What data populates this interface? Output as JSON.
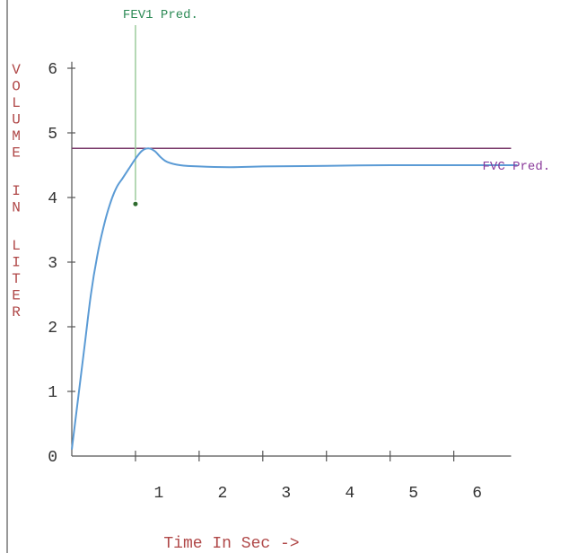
{
  "chart_data": {
    "type": "line",
    "title": "",
    "xlabel": "Time In Sec ->",
    "ylabel": "VOLUME IN LITER",
    "xlim": [
      0,
      7.5
    ],
    "ylim": [
      0,
      6.5
    ],
    "x_ticks": [
      1,
      2,
      3,
      4,
      5,
      6
    ],
    "y_ticks": [
      0,
      1,
      2,
      3,
      4,
      5,
      6
    ],
    "grid": false,
    "series": [
      {
        "color": "#5b9bd5",
        "x": [
          0,
          0.1,
          0.2,
          0.3,
          0.4,
          0.5,
          0.6,
          0.7,
          0.8,
          0.9,
          1.0,
          1.1,
          1.2,
          1.3,
          1.4,
          1.5,
          1.7,
          2.0,
          2.5,
          3.0,
          4.0,
          5.0,
          6.0,
          7.0
        ],
        "y": [
          0.1,
          0.9,
          1.7,
          2.5,
          3.1,
          3.55,
          3.9,
          4.15,
          4.3,
          4.45,
          4.6,
          4.72,
          4.76,
          4.72,
          4.62,
          4.55,
          4.5,
          4.48,
          4.47,
          4.48,
          4.49,
          4.5,
          4.5,
          4.5
        ]
      }
    ],
    "references": {
      "fvc_pred": {
        "label": "FVC Pred.",
        "value": 4.76,
        "color": "#7a3a6a"
      },
      "fev1_pred": {
        "label": "FEV1 Pred.",
        "time": 1.0,
        "volume": 3.9,
        "color": "#9ccc9c",
        "marker_color": "#2e6b2e"
      }
    }
  }
}
